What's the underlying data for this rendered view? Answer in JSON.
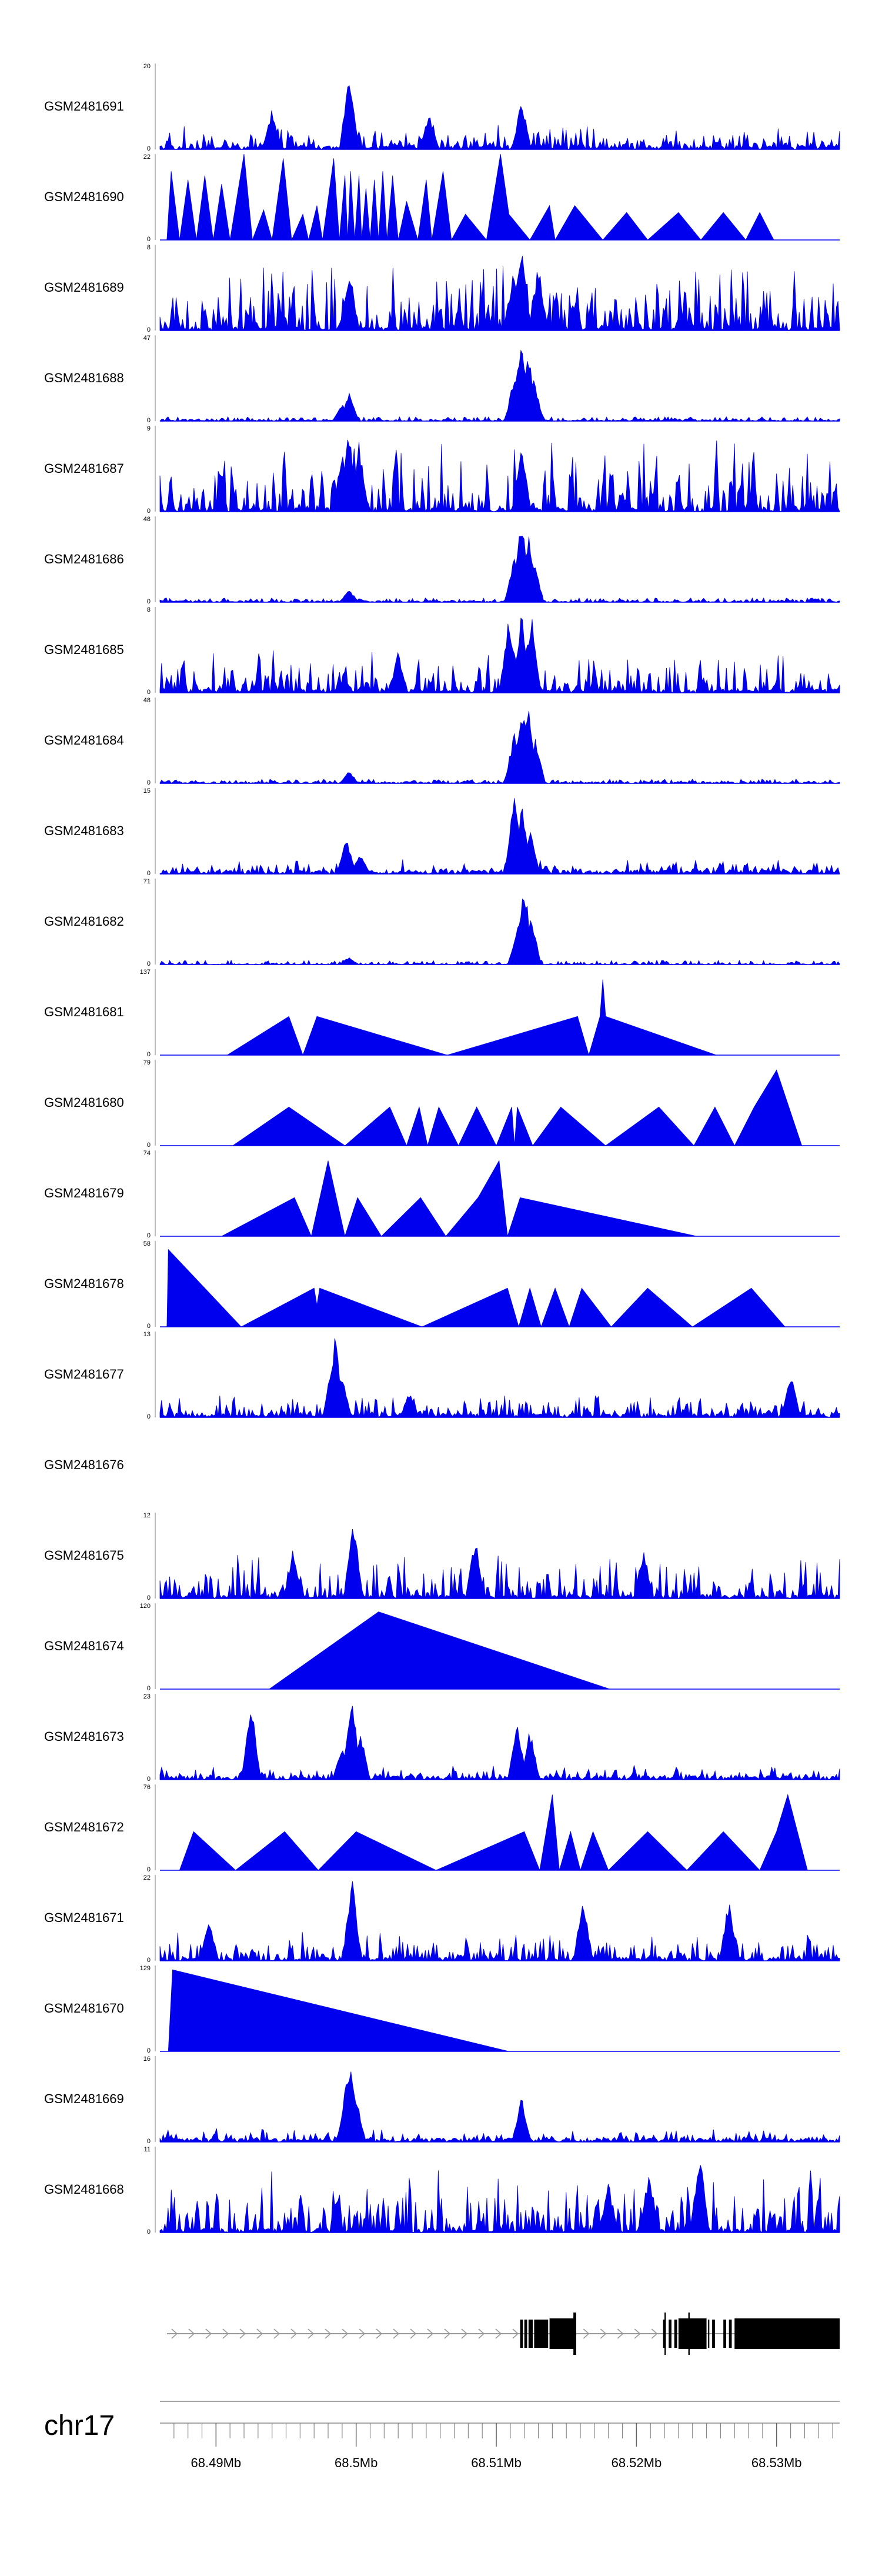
{
  "chart_data": {
    "type": "area",
    "title": "",
    "chromosome": "chr17",
    "xlabel": "",
    "ylabel": "",
    "region_mb": [
      68.486,
      68.5345
    ],
    "ticks_mb": [
      68.49,
      68.5,
      68.51,
      68.52,
      68.53
    ],
    "tick_labels": [
      "68.49Mb",
      "68.5Mb",
      "68.51Mb",
      "68.52Mb",
      "68.53Mb"
    ],
    "colors": {
      "signal": "#0000ee",
      "gene": "#000000",
      "axis": "#777777",
      "intron": "#999999"
    },
    "tracks": [
      {
        "name": "GSM2481691",
        "ymax": 20,
        "pattern": "noise",
        "seed": 11,
        "base": 0.18,
        "spikes": [
          [
            68.4995,
            1.0
          ],
          [
            68.5118,
            0.6
          ],
          [
            68.5052,
            0.45
          ],
          [
            68.494,
            0.5
          ]
        ]
      },
      {
        "name": "GSM2481690",
        "ymax": 22,
        "pattern": "sparse",
        "points": [
          [
            68.4865,
            0
          ],
          [
            68.4868,
            0.8
          ],
          [
            68.4874,
            0
          ],
          [
            68.488,
            0.7
          ],
          [
            68.4886,
            0
          ],
          [
            68.4892,
            0.75
          ],
          [
            68.4898,
            0
          ],
          [
            68.4904,
            0.65
          ],
          [
            68.491,
            0
          ],
          [
            68.492,
            1.0
          ],
          [
            68.4926,
            0
          ],
          [
            68.4934,
            0.35
          ],
          [
            68.494,
            0
          ],
          [
            68.4948,
            0.95
          ],
          [
            68.4954,
            0
          ],
          [
            68.4962,
            0.3
          ],
          [
            68.4966,
            0
          ],
          [
            68.4972,
            0.4
          ],
          [
            68.4976,
            0
          ],
          [
            68.4984,
            0.95
          ],
          [
            68.4988,
            0
          ],
          [
            68.4992,
            0.75
          ],
          [
            68.4994,
            0
          ],
          [
            68.4996,
            0.8
          ],
          [
            68.4999,
            0
          ],
          [
            68.5002,
            0.75
          ],
          [
            68.5004,
            0
          ],
          [
            68.5007,
            0.6
          ],
          [
            68.501,
            0
          ],
          [
            68.5013,
            0.7
          ],
          [
            68.5016,
            0
          ],
          [
            68.5019,
            0.8
          ],
          [
            68.5022,
            0
          ],
          [
            68.5026,
            0.75
          ],
          [
            68.503,
            0
          ],
          [
            68.5036,
            0.45
          ],
          [
            68.5044,
            0
          ],
          [
            68.505,
            0.7
          ],
          [
            68.5054,
            0
          ],
          [
            68.5062,
            0.8
          ],
          [
            68.5068,
            0
          ],
          [
            68.5078,
            0.3
          ],
          [
            68.5093,
            0
          ],
          [
            68.5103,
            1.0
          ],
          [
            68.5109,
            0.3
          ],
          [
            68.5124,
            0
          ],
          [
            68.5138,
            0.4
          ],
          [
            68.5142,
            0
          ],
          [
            68.5156,
            0.4
          ],
          [
            68.5176,
            0
          ],
          [
            68.5193,
            0.32
          ],
          [
            68.5208,
            0
          ],
          [
            68.523,
            0.32
          ],
          [
            68.5246,
            0
          ],
          [
            68.5262,
            0.32
          ],
          [
            68.5278,
            0
          ],
          [
            68.5288,
            0.32
          ],
          [
            68.5298,
            0
          ]
        ]
      },
      {
        "name": "GSM2481689",
        "ymax": 8,
        "pattern": "noise",
        "seed": 23,
        "base": 0.45,
        "spikes": [
          [
            68.5118,
            1.0
          ],
          [
            68.513,
            0.8
          ],
          [
            68.5112,
            0.7
          ],
          [
            68.4995,
            0.75
          ]
        ]
      },
      {
        "name": "GSM2481688",
        "ymax": 47,
        "pattern": "peak",
        "seed": 31,
        "base": 0.02,
        "spikes": [
          [
            68.5118,
            1.0
          ],
          [
            68.5123,
            0.8
          ],
          [
            68.5113,
            0.55
          ],
          [
            68.5127,
            0.5
          ],
          [
            68.4995,
            0.35
          ],
          [
            68.499,
            0.2
          ]
        ]
      },
      {
        "name": "GSM2481687",
        "ymax": 9,
        "pattern": "noise",
        "seed": 37,
        "base": 0.5,
        "spikes": [
          [
            68.4995,
            1.0
          ],
          [
            68.5002,
            0.85
          ],
          [
            68.499,
            0.7
          ],
          [
            68.5118,
            0.8
          ]
        ]
      },
      {
        "name": "GSM2481686",
        "ymax": 48,
        "pattern": "peak",
        "seed": 41,
        "base": 0.02,
        "spikes": [
          [
            68.5118,
            1.0
          ],
          [
            68.5123,
            0.85
          ],
          [
            68.5113,
            0.55
          ],
          [
            68.5127,
            0.5
          ],
          [
            68.4995,
            0.16
          ]
        ]
      },
      {
        "name": "GSM2481685",
        "ymax": 8,
        "pattern": "noise",
        "seed": 43,
        "base": 0.3,
        "spikes": [
          [
            68.5118,
            1.0
          ],
          [
            68.5109,
            0.95
          ],
          [
            68.5125,
            0.95
          ],
          [
            68.503,
            0.5
          ]
        ]
      },
      {
        "name": "GSM2481684",
        "ymax": 48,
        "pattern": "peak",
        "seed": 47,
        "base": 0.02,
        "spikes": [
          [
            68.5118,
            1.0
          ],
          [
            68.5123,
            0.95
          ],
          [
            68.5113,
            0.65
          ],
          [
            68.5128,
            0.55
          ],
          [
            68.4995,
            0.15
          ]
        ]
      },
      {
        "name": "GSM2481683",
        "ymax": 15,
        "pattern": "peak",
        "seed": 53,
        "base": 0.1,
        "spikes": [
          [
            68.5113,
            1.0
          ],
          [
            68.5118,
            0.85
          ],
          [
            68.5124,
            0.55
          ],
          [
            68.4993,
            0.45
          ],
          [
            68.5003,
            0.25
          ]
        ]
      },
      {
        "name": "GSM2481682",
        "ymax": 71,
        "pattern": "peak",
        "seed": 59,
        "base": 0.01,
        "spikes": [
          [
            68.512,
            1.0
          ],
          [
            68.5125,
            0.6
          ],
          [
            68.5115,
            0.45
          ],
          [
            68.4995,
            0.09
          ]
        ]
      },
      {
        "name": "GSM2481681",
        "ymax": 137,
        "pattern": "sparse",
        "points": [
          [
            68.4908,
            0
          ],
          [
            68.4952,
            0.45
          ],
          [
            68.4962,
            0
          ],
          [
            68.4972,
            0.45
          ],
          [
            68.5065,
            0
          ],
          [
            68.5158,
            0.45
          ],
          [
            68.5166,
            0
          ],
          [
            68.5174,
            0.45
          ],
          [
            68.5176,
            0.88
          ],
          [
            68.5178,
            0.45
          ],
          [
            68.5257,
            0
          ]
        ]
      },
      {
        "name": "GSM2481680",
        "ymax": 79,
        "pattern": "sparse",
        "points": [
          [
            68.4912,
            0
          ],
          [
            68.4952,
            0.45
          ],
          [
            68.4992,
            0
          ],
          [
            68.5024,
            0.45
          ],
          [
            68.5036,
            0
          ],
          [
            68.5045,
            0.45
          ],
          [
            68.5051,
            0
          ],
          [
            68.5059,
            0.45
          ],
          [
            68.5073,
            0
          ],
          [
            68.5086,
            0.45
          ],
          [
            68.51,
            0
          ],
          [
            68.5111,
            0.45
          ],
          [
            68.5113,
            0
          ],
          [
            68.5115,
            0.45
          ],
          [
            68.5126,
            0
          ],
          [
            68.5146,
            0.45
          ],
          [
            68.5178,
            0
          ],
          [
            68.5216,
            0.45
          ],
          [
            68.5241,
            0
          ],
          [
            68.5256,
            0.45
          ],
          [
            68.527,
            0
          ],
          [
            68.5284,
            0.45
          ],
          [
            68.53,
            0.88
          ],
          [
            68.5318,
            0
          ]
        ]
      },
      {
        "name": "GSM2481679",
        "ymax": 74,
        "pattern": "sparse",
        "points": [
          [
            68.4904,
            0
          ],
          [
            68.4956,
            0.45
          ],
          [
            68.4968,
            0
          ],
          [
            68.498,
            0.88
          ],
          [
            68.4992,
            0
          ],
          [
            68.5001,
            0.45
          ],
          [
            68.5018,
            0
          ],
          [
            68.5046,
            0.45
          ],
          [
            68.5064,
            0
          ],
          [
            68.5087,
            0.45
          ],
          [
            68.5102,
            0.88
          ],
          [
            68.5108,
            0
          ],
          [
            68.5117,
            0.45
          ],
          [
            68.5243,
            0
          ]
        ]
      },
      {
        "name": "GSM2481678",
        "ymax": 58,
        "pattern": "sparse",
        "points": [
          [
            68.4865,
            0
          ],
          [
            68.4866,
            0.9
          ],
          [
            68.4918,
            0
          ],
          [
            68.497,
            0.45
          ],
          [
            68.4972,
            0.25
          ],
          [
            68.4974,
            0.45
          ],
          [
            68.5047,
            0
          ],
          [
            68.5108,
            0.45
          ],
          [
            68.5116,
            0
          ],
          [
            68.5124,
            0.45
          ],
          [
            68.5132,
            0
          ],
          [
            68.5142,
            0.45
          ],
          [
            68.5152,
            0
          ],
          [
            68.5161,
            0.45
          ],
          [
            68.5182,
            0
          ],
          [
            68.5208,
            0.45
          ],
          [
            68.524,
            0
          ],
          [
            68.5282,
            0.45
          ],
          [
            68.5306,
            0
          ]
        ]
      },
      {
        "name": "GSM2481677",
        "ymax": 13,
        "pattern": "noise",
        "seed": 67,
        "base": 0.15,
        "spikes": [
          [
            68.4985,
            1.0
          ],
          [
            68.4983,
            0.75
          ],
          [
            68.499,
            0.5
          ],
          [
            68.531,
            0.55
          ],
          [
            68.5038,
            0.3
          ]
        ]
      },
      {
        "name": "GSM2481676",
        "ymax": null,
        "pattern": "empty"
      },
      {
        "name": "GSM2481675",
        "ymax": 12,
        "pattern": "noise",
        "seed": 71,
        "base": 0.35,
        "spikes": [
          [
            68.4998,
            1.0
          ],
          [
            68.5085,
            0.75
          ],
          [
            68.4955,
            0.6
          ],
          [
            68.5205,
            0.6
          ]
        ]
      },
      {
        "name": "GSM2481674",
        "ymax": 120,
        "pattern": "sparse",
        "points": [
          [
            68.4938,
            0
          ],
          [
            68.5016,
            0.9
          ],
          [
            68.5181,
            0
          ]
        ]
      },
      {
        "name": "GSM2481673",
        "ymax": 23,
        "pattern": "noise",
        "seed": 79,
        "base": 0.1,
        "spikes": [
          [
            68.4925,
            0.95
          ],
          [
            68.4997,
            1.0
          ],
          [
            68.5003,
            0.6
          ],
          [
            68.5115,
            0.65
          ],
          [
            68.5124,
            0.6
          ],
          [
            68.499,
            0.4
          ]
        ]
      },
      {
        "name": "GSM2481672",
        "ymax": 76,
        "pattern": "sparse",
        "points": [
          [
            68.4874,
            0
          ],
          [
            68.4884,
            0.45
          ],
          [
            68.4914,
            0
          ],
          [
            68.4949,
            0.45
          ],
          [
            68.4973,
            0
          ],
          [
            68.5,
            0.45
          ],
          [
            68.5057,
            0
          ],
          [
            68.512,
            0.45
          ],
          [
            68.5131,
            0
          ],
          [
            68.514,
            0.88
          ],
          [
            68.5145,
            0
          ],
          [
            68.5153,
            0.45
          ],
          [
            68.516,
            0
          ],
          [
            68.5169,
            0.45
          ],
          [
            68.518,
            0
          ],
          [
            68.5208,
            0.45
          ],
          [
            68.5236,
            0
          ],
          [
            68.5262,
            0.45
          ],
          [
            68.5288,
            0
          ],
          [
            68.53,
            0.45
          ],
          [
            68.5308,
            0.88
          ],
          [
            68.5322,
            0
          ]
        ]
      },
      {
        "name": "GSM2481671",
        "ymax": 22,
        "pattern": "noise",
        "seed": 83,
        "base": 0.2,
        "spikes": [
          [
            68.4997,
            1.0
          ],
          [
            68.5162,
            0.8
          ],
          [
            68.5266,
            0.75
          ],
          [
            68.4895,
            0.5
          ]
        ]
      },
      {
        "name": "GSM2481670",
        "ymax": 129,
        "pattern": "sparse",
        "points": [
          [
            68.4866,
            0
          ],
          [
            68.4869,
            0.95
          ],
          [
            68.5109,
            0
          ]
        ]
      },
      {
        "name": "GSM2481669",
        "ymax": 16,
        "pattern": "noise",
        "seed": 89,
        "base": 0.1,
        "spikes": [
          [
            68.4996,
            1.0
          ],
          [
            68.4993,
            0.7
          ],
          [
            68.5,
            0.55
          ],
          [
            68.5118,
            0.55
          ]
        ]
      },
      {
        "name": "GSM2481668",
        "ymax": 11,
        "pattern": "noise",
        "seed": 97,
        "base": 0.45,
        "spikes": [
          [
            68.5245,
            1.0
          ],
          [
            68.5209,
            0.75
          ],
          [
            68.518,
            0.6
          ]
        ]
      }
    ],
    "gene": {
      "start_mb": 68.4865,
      "end_mb": 68.5345,
      "strand": "+",
      "exons_mb": [
        [
          68.5117,
          68.5119
        ],
        [
          68.512,
          68.5122
        ],
        [
          68.5123,
          68.5126
        ],
        [
          68.5127,
          68.5137
        ],
        [
          68.5138,
          68.5157
        ],
        [
          68.5219,
          68.5221
        ],
        [
          68.5223,
          68.5225
        ],
        [
          68.5227,
          68.5229
        ],
        [
          68.523,
          68.525
        ],
        [
          68.5251,
          68.5252
        ],
        [
          68.5254,
          68.5256
        ],
        [
          68.5262,
          68.5264
        ],
        [
          68.5266,
          68.5268
        ],
        [
          68.527,
          68.5345
        ]
      ]
    }
  }
}
